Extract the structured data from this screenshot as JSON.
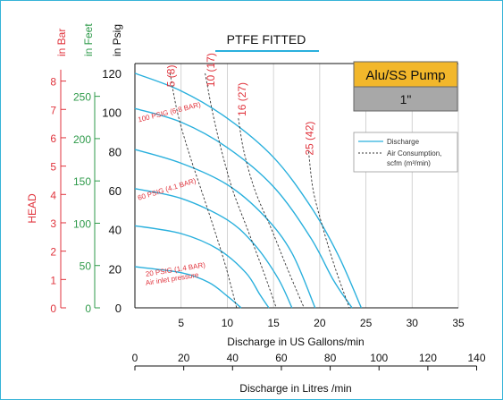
{
  "chart_data": {
    "type": "line",
    "title": "PTFE FITTED",
    "badge": {
      "line1": "Alu/SS Pump",
      "line2": "1\"",
      "color_top": "#f2b72b",
      "color_bottom": "#a8a8a8"
    },
    "xlabel": "Discharge in US Gallons/min",
    "xlabel2": "Discharge in Litres /min",
    "xlim": [
      0,
      35
    ],
    "x_ticks": [
      0,
      5,
      10,
      15,
      20,
      25,
      30,
      35
    ],
    "x2_ticks": [
      0,
      20,
      40,
      60,
      80,
      100,
      120,
      140
    ],
    "ylim": [
      0,
      125
    ],
    "y_axes": [
      {
        "label": "in Psig",
        "color": "#111111",
        "ticks": [
          0,
          20,
          40,
          60,
          80,
          100,
          120
        ]
      },
      {
        "label": "in Feet",
        "color": "#2e9a4a",
        "ticks": [
          0,
          50,
          100,
          150,
          200,
          250
        ]
      },
      {
        "label": "in Bar",
        "color": "#e0333c",
        "ticks": [
          0,
          1,
          2,
          3,
          4,
          5,
          6,
          7,
          8
        ]
      }
    ],
    "head_label": "HEAD",
    "legend": [
      {
        "label": "Discharge",
        "style": "solid",
        "color": "#2ab0dd"
      },
      {
        "label": "Air Consumption,",
        "style": "dashed",
        "color": "#333333"
      },
      {
        "label": "scfm (m³/min)",
        "style": "none",
        "color": "#333333"
      }
    ],
    "discharge_series": [
      {
        "pressure_label": "100 PSIG (6.8 BAR)",
        "points": [
          [
            0,
            120
          ],
          [
            5,
            111
          ],
          [
            10,
            97
          ],
          [
            15,
            77
          ],
          [
            19,
            52
          ],
          [
            22,
            27
          ],
          [
            24.5,
            0
          ]
        ]
      },
      {
        "pressure_label": "",
        "points": [
          [
            0,
            102
          ],
          [
            5,
            95
          ],
          [
            10,
            82
          ],
          [
            15,
            62
          ],
          [
            19,
            36
          ],
          [
            21.5,
            14
          ],
          [
            23.5,
            0
          ]
        ]
      },
      {
        "pressure_label": "",
        "points": [
          [
            0,
            81
          ],
          [
            5,
            74
          ],
          [
            10,
            63
          ],
          [
            14,
            47
          ],
          [
            17,
            28
          ],
          [
            19.5,
            0
          ]
        ]
      },
      {
        "pressure_label": "60 PSIG (4.1 BAR)",
        "points": [
          [
            0,
            61
          ],
          [
            5,
            56
          ],
          [
            10,
            45
          ],
          [
            13,
            32
          ],
          [
            15.5,
            15
          ],
          [
            17,
            0
          ]
        ]
      },
      {
        "pressure_label": "",
        "points": [
          [
            0,
            42
          ],
          [
            5,
            38
          ],
          [
            9,
            30
          ],
          [
            12,
            18
          ],
          [
            13.5,
            7
          ],
          [
            14.5,
            0
          ]
        ]
      },
      {
        "pressure_label": "20 PSIG (1.4 BAR)",
        "points": [
          [
            0,
            21
          ],
          [
            5,
            18
          ],
          [
            8,
            13
          ],
          [
            10,
            6
          ],
          [
            11.5,
            0
          ]
        ]
      }
    ],
    "pressure_note": "Air inlet pressure",
    "air_series": [
      {
        "label": "5 (8)",
        "points": [
          [
            3.8,
            120
          ],
          [
            4.6,
            100
          ],
          [
            5.8,
            80
          ],
          [
            7.2,
            60
          ],
          [
            8.6,
            40
          ],
          [
            9.9,
            20
          ],
          [
            11,
            0
          ]
        ]
      },
      {
        "label": "10 (17)",
        "points": [
          [
            7.6,
            120
          ],
          [
            8.4,
            100
          ],
          [
            9.4,
            80
          ],
          [
            10.6,
            60
          ],
          [
            12.2,
            40
          ],
          [
            13.8,
            20
          ],
          [
            15.3,
            0
          ]
        ]
      },
      {
        "label": "16 (27)",
        "points": [
          [
            11.2,
            97
          ],
          [
            11.8,
            80
          ],
          [
            13,
            60
          ],
          [
            14.8,
            40
          ],
          [
            16.5,
            20
          ],
          [
            18.3,
            0
          ]
        ]
      },
      {
        "label": "25 (42)",
        "points": [
          [
            18.8,
            80
          ],
          [
            19.3,
            60
          ],
          [
            20.4,
            40
          ],
          [
            21.7,
            20
          ],
          [
            23.2,
            0
          ]
        ]
      }
    ]
  }
}
